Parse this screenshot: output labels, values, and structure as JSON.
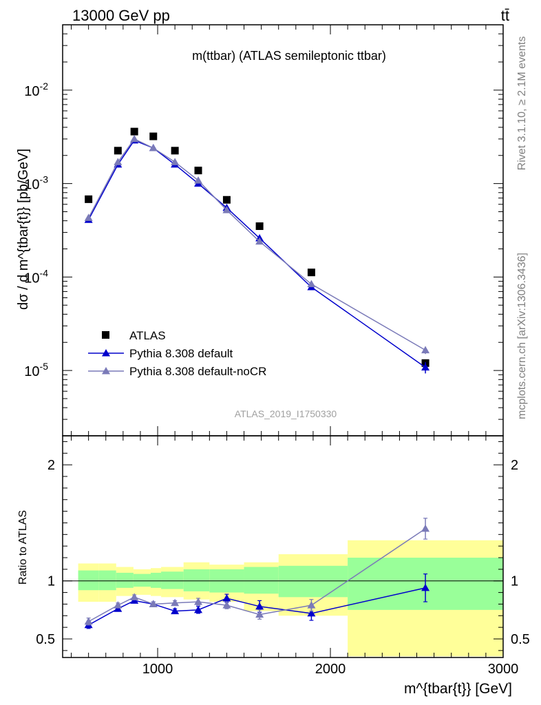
{
  "header": {
    "left_label": "13000 GeV pp",
    "right_label": "tt̄"
  },
  "side_labels": {
    "rivet": "Rivet 3.1.10, ≥ 2.1M events",
    "mcplots": "mcplots.cern.ch [arXiv:1306.3436]"
  },
  "chart_data": [
    {
      "type": "scatter",
      "panel": "main",
      "title": "m(ttbar) (ATLAS semileptonic ttbar)",
      "analysis_label": "ATLAS_2019_I1750330",
      "ylabel": "dσ / d m^{tbar{t}} [pb/GeV]",
      "xlabel": "",
      "xlim": [
        450,
        3000
      ],
      "ylim": [
        2e-06,
        0.05
      ],
      "y_scale": "log",
      "x_ticks": [
        1000,
        2000,
        3000
      ],
      "y_ticks": [
        {
          "value": 1e-05,
          "label": "10^-5"
        },
        {
          "value": 0.0001,
          "label": "10^-4"
        },
        {
          "value": 0.001,
          "label": "10^-3"
        },
        {
          "value": 0.01,
          "label": "10^-2"
        }
      ],
      "legend_position": "bottom-left",
      "series": [
        {
          "name": "ATLAS",
          "color": "#000000",
          "marker": "square",
          "x": [
            600,
            770,
            865,
            975,
            1100,
            1235,
            1400,
            1590,
            1890,
            2550
          ],
          "values": [
            0.00068,
            0.00225,
            0.0036,
            0.0032,
            0.00225,
            0.00138,
            0.00067,
            0.00035,
            0.000112,
            1.2e-05
          ]
        },
        {
          "name": "Pythia 8.308 default",
          "color": "#0000cc",
          "marker": "triangle",
          "x": [
            600,
            770,
            865,
            975,
            1100,
            1235,
            1400,
            1590,
            1890,
            2550
          ],
          "values": [
            0.00041,
            0.0016,
            0.0029,
            0.0024,
            0.0016,
            0.001,
            0.00055,
            0.00026,
            7.8e-05,
            1.08e-05
          ],
          "errors": [
            2e-05,
            4e-05,
            5e-05,
            5e-05,
            4e-05,
            3e-05,
            2e-05,
            1.2e-05,
            4e-06,
            1.5e-06
          ]
        },
        {
          "name": "Pythia 8.308 default-noCR",
          "color": "#7a7ab8",
          "marker": "triangle",
          "x": [
            600,
            770,
            865,
            975,
            1100,
            1235,
            1400,
            1590,
            1890,
            2550
          ],
          "values": [
            0.00043,
            0.0017,
            0.003,
            0.0024,
            0.0017,
            0.00108,
            0.00052,
            0.00024,
            8.4e-05,
            1.65e-05
          ],
          "errors": [
            2e-05,
            4e-05,
            5e-05,
            5e-05,
            4e-05,
            3e-05,
            2e-05,
            1.2e-05,
            4e-06,
            1.5e-06
          ]
        }
      ]
    },
    {
      "type": "scatter",
      "panel": "ratio",
      "ylabel": "Ratio to ATLAS",
      "xlabel": "m^{tbar{t}} [GeV]",
      "xlim": [
        450,
        3000
      ],
      "ylim": [
        0.34,
        2.25
      ],
      "x_ticks": [
        1000,
        2000,
        3000
      ],
      "y_ticks": [
        0.5,
        1,
        2
      ],
      "reference_line": 1,
      "uncertainty_bands": [
        {
          "x0": 540,
          "x1": 660,
          "stat_lo": 0.92,
          "stat_hi": 1.09,
          "tot_lo": 0.82,
          "tot_hi": 1.15
        },
        {
          "x0": 660,
          "x1": 760,
          "stat_lo": 0.92,
          "stat_hi": 1.09,
          "tot_lo": 0.82,
          "tot_hi": 1.15
        },
        {
          "x0": 760,
          "x1": 860,
          "stat_lo": 0.94,
          "stat_hi": 1.07,
          "tot_lo": 0.87,
          "tot_hi": 1.12
        },
        {
          "x0": 860,
          "x1": 960,
          "stat_lo": 0.95,
          "stat_hi": 1.06,
          "tot_lo": 0.88,
          "tot_hi": 1.1
        },
        {
          "x0": 960,
          "x1": 1020,
          "stat_lo": 0.94,
          "stat_hi": 1.07,
          "tot_lo": 0.87,
          "tot_hi": 1.11
        },
        {
          "x0": 1020,
          "x1": 1150,
          "stat_lo": 0.93,
          "stat_hi": 1.08,
          "tot_lo": 0.86,
          "tot_hi": 1.12
        },
        {
          "x0": 1150,
          "x1": 1300,
          "stat_lo": 0.91,
          "stat_hi": 1.1,
          "tot_lo": 0.84,
          "tot_hi": 1.16
        },
        {
          "x0": 1300,
          "x1": 1500,
          "stat_lo": 0.9,
          "stat_hi": 1.1,
          "tot_lo": 0.82,
          "tot_hi": 1.14
        },
        {
          "x0": 1500,
          "x1": 1700,
          "stat_lo": 0.89,
          "stat_hi": 1.12,
          "tot_lo": 0.74,
          "tot_hi": 1.16
        },
        {
          "x0": 1700,
          "x1": 2100,
          "stat_lo": 0.86,
          "stat_hi": 1.13,
          "tot_lo": 0.7,
          "tot_hi": 1.23
        },
        {
          "x0": 2100,
          "x1": 3000,
          "stat_lo": 0.75,
          "stat_hi": 1.2,
          "tot_lo": 0.35,
          "tot_hi": 1.35
        }
      ],
      "series": [
        {
          "name": "Pythia 8.308 default",
          "color": "#0000cc",
          "x": [
            600,
            770,
            865,
            975,
            1100,
            1235,
            1400,
            1590,
            1890,
            2550
          ],
          "values": [
            0.62,
            0.76,
            0.83,
            0.8,
            0.74,
            0.75,
            0.85,
            0.78,
            0.72,
            0.94
          ],
          "errors": [
            0.03,
            0.02,
            0.02,
            0.02,
            0.02,
            0.03,
            0.035,
            0.05,
            0.06,
            0.12
          ]
        },
        {
          "name": "Pythia 8.308 default-noCR",
          "color": "#7a7ab8",
          "x": [
            600,
            770,
            865,
            975,
            1100,
            1235,
            1400,
            1590,
            1890,
            2550
          ],
          "values": [
            0.65,
            0.79,
            0.86,
            0.8,
            0.81,
            0.82,
            0.79,
            0.71,
            0.79,
            1.45
          ],
          "errors": [
            0.03,
            0.02,
            0.02,
            0.02,
            0.02,
            0.03,
            0.03,
            0.04,
            0.05,
            0.09
          ]
        }
      ]
    }
  ]
}
